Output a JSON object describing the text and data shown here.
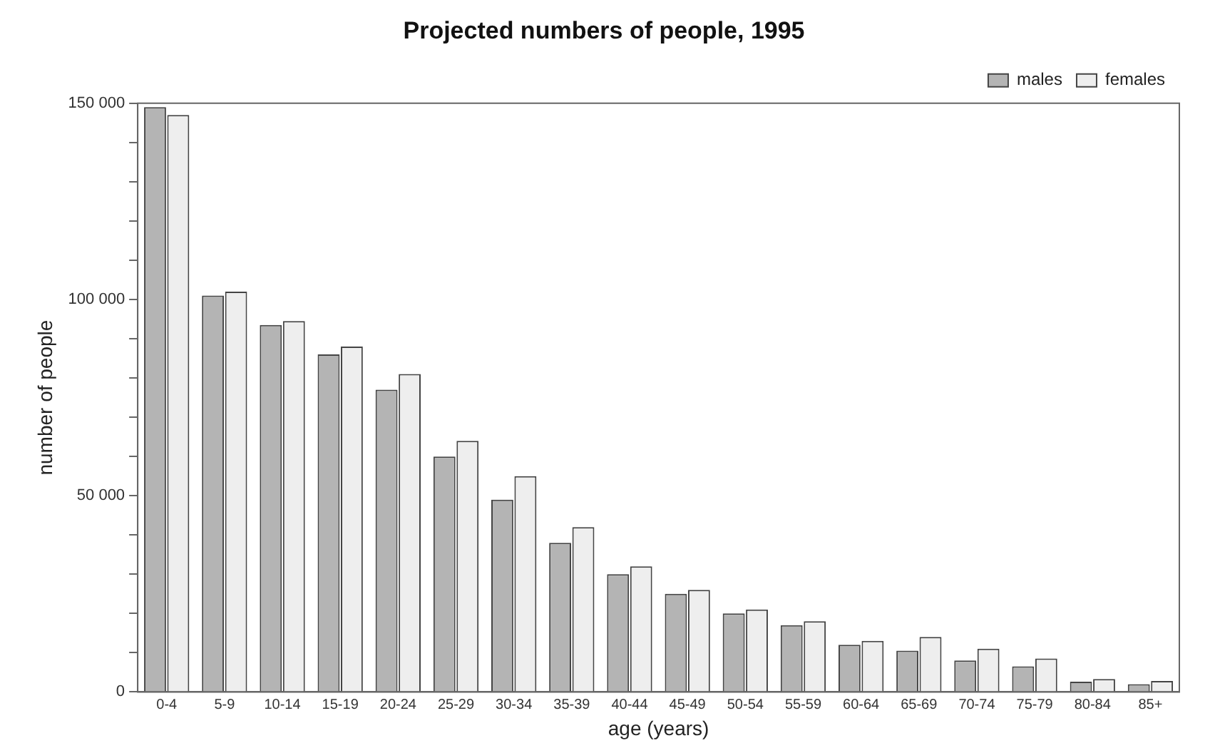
{
  "chart_data": {
    "type": "bar",
    "title": "Projected numbers of people, 1995",
    "xlabel": "age (years)",
    "ylabel": "number of people",
    "categories": [
      "0-4",
      "5-9",
      "10-14",
      "15-19",
      "20-24",
      "25-29",
      "30-34",
      "35-39",
      "40-44",
      "45-49",
      "50-54",
      "55-59",
      "60-64",
      "65-69",
      "70-74",
      "75-79",
      "80-84",
      "85+"
    ],
    "series": [
      {
        "name": "males",
        "color": "#b4b4b4",
        "values": [
          149000,
          101000,
          93500,
          86000,
          77000,
          60000,
          49000,
          38000,
          30000,
          25000,
          20000,
          17000,
          12000,
          10500,
          8000,
          6500,
          2600,
          2000
        ]
      },
      {
        "name": "females",
        "color": "#eeeeee",
        "values": [
          147000,
          102000,
          94500,
          88000,
          81000,
          64000,
          55000,
          42000,
          32000,
          26000,
          21000,
          18000,
          13000,
          14000,
          11000,
          8500,
          3300,
          2800
        ]
      }
    ],
    "ylim": [
      0,
      150000
    ],
    "yticks": [
      0,
      {
        "value": 10000,
        "label": null
      },
      {
        "value": 20000,
        "label": null
      },
      {
        "value": 30000,
        "label": null
      },
      {
        "value": 40000,
        "label": null
      },
      {
        "value": 50000,
        "label": "50 000"
      },
      {
        "value": 60000,
        "label": null
      },
      {
        "value": 70000,
        "label": null
      },
      {
        "value": 80000,
        "label": null
      },
      {
        "value": 90000,
        "label": null
      },
      {
        "value": 100000,
        "label": "100 000"
      },
      {
        "value": 110000,
        "label": null
      },
      {
        "value": 120000,
        "label": null
      },
      {
        "value": 130000,
        "label": null
      },
      {
        "value": 140000,
        "label": null
      },
      {
        "value": 150000,
        "label": "150 000"
      }
    ],
    "grid": false,
    "legend": "top right"
  }
}
